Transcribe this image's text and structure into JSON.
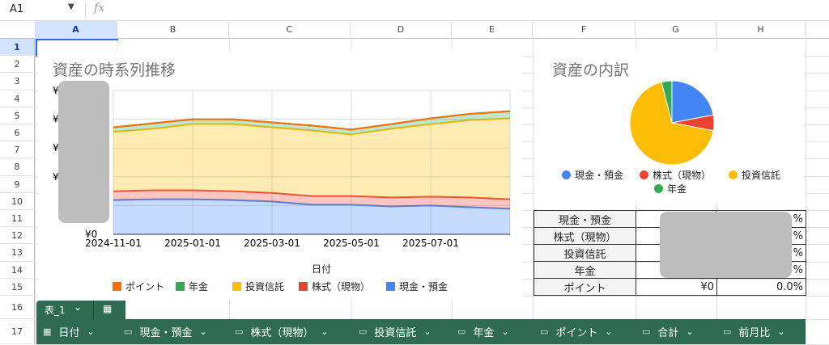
{
  "formula_bar": {
    "name_box": "A1",
    "fx": "fx",
    "dropdown_icon": "triangle-down-icon"
  },
  "columns": [
    "A",
    "B",
    "C",
    "D",
    "E",
    "F",
    "G",
    "H"
  ],
  "rows": [
    "1",
    "2",
    "3",
    "4",
    "5",
    "6",
    "7",
    "8",
    "9",
    "10",
    "11",
    "12",
    "13",
    "14",
    "15",
    "16",
    "17"
  ],
  "area_chart": {
    "title": "資産の時系列推移",
    "xlabel": "日付",
    "y_tick_labels": [
      "¥",
      "¥",
      "¥",
      "¥",
      "¥0"
    ],
    "x_tick_labels": [
      "2024-11-01",
      "2025-01-01",
      "2025-03-01",
      "2025-05-01",
      "2025-07-01"
    ],
    "legend": [
      "ポイント",
      "年金",
      "投資信託",
      "株式（現物）",
      "現金・預金"
    ]
  },
  "chart_data": [
    {
      "type": "area",
      "stacked": true,
      "title": "資産の時系列推移",
      "xlabel": "日付",
      "ylabel": "",
      "y_axis_values_obscured": true,
      "x": [
        "2024-11-01",
        "2024-12-01",
        "2025-01-01",
        "2025-02-01",
        "2025-03-01",
        "2025-04-01",
        "2025-05-01",
        "2025-06-01",
        "2025-07-01",
        "2025-08-01",
        "2025-09-01"
      ],
      "ylim": [
        0,
        5
      ],
      "grid": true,
      "legend_position": "bottom",
      "series": [
        {
          "name": "現金・預金",
          "color": "#4285f4",
          "values": [
            1.19,
            1.22,
            1.22,
            1.19,
            1.14,
            1.03,
            1.03,
            0.97,
            1.0,
            0.94,
            0.89
          ]
        },
        {
          "name": "株式（現物）",
          "color": "#ea4335",
          "values": [
            0.31,
            0.31,
            0.31,
            0.31,
            0.3,
            0.3,
            0.3,
            0.31,
            0.31,
            0.34,
            0.33
          ]
        },
        {
          "name": "投資信託",
          "color": "#fbbc04",
          "values": [
            2.06,
            2.14,
            2.3,
            2.33,
            2.28,
            2.28,
            2.14,
            2.39,
            2.52,
            2.69,
            2.81
          ]
        },
        {
          "name": "年金",
          "color": "#34a853",
          "values": [
            0.16,
            0.19,
            0.17,
            0.17,
            0.17,
            0.17,
            0.17,
            0.16,
            0.2,
            0.22,
            0.25
          ]
        },
        {
          "name": "ポイント",
          "color": "#ff6d01",
          "values": [
            0,
            0,
            0,
            0,
            0,
            0,
            0,
            0,
            0,
            0,
            0
          ]
        }
      ]
    },
    {
      "type": "pie",
      "title": "資産の内訳",
      "legend_position": "bottom",
      "categories": [
        "現金・預金",
        "株式（現物）",
        "投資信託",
        "年金"
      ],
      "values": [
        22,
        6,
        68,
        4
      ],
      "colors": [
        "#4285f4",
        "#ea4335",
        "#fbbc04",
        "#34a853"
      ]
    }
  ],
  "pie_chart": {
    "title": "資産の内訳",
    "legend": [
      "現金・預金",
      "株式（現物）",
      "投資信託",
      "年金"
    ]
  },
  "summary_table": [
    {
      "label": "現金・預金",
      "value": "",
      "pct": "%"
    },
    {
      "label": "株式（現物）",
      "value": "",
      "pct": "%"
    },
    {
      "label": "投資信託",
      "value": "¥",
      "pct": "%"
    },
    {
      "label": "年金",
      "value": "",
      "pct": "%"
    },
    {
      "label": "ポイント",
      "value": "¥0",
      "pct": "0.0%"
    }
  ],
  "table_tab": {
    "name": "表_1",
    "chevron": "⌄",
    "icon": "calculator-icon"
  },
  "table_headers": [
    {
      "label": "日付",
      "icon": "calendar-icon"
    },
    {
      "label": "現金・預金",
      "icon": "money-icon"
    },
    {
      "label": "株式（現物）",
      "icon": "money-icon"
    },
    {
      "label": "投資信託",
      "icon": "money-icon"
    },
    {
      "label": "年金",
      "icon": "money-icon"
    },
    {
      "label": "ポイント",
      "icon": "money-icon"
    },
    {
      "label": "合計",
      "icon": "money-icon"
    },
    {
      "label": "前月比",
      "icon": "money-icon"
    }
  ]
}
